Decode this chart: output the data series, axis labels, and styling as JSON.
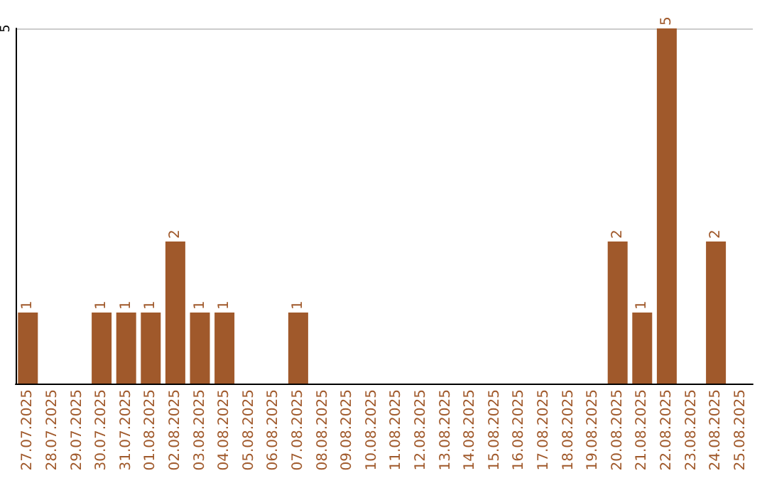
{
  "chart_data": {
    "type": "bar",
    "categories": [
      "27.07.2025",
      "28.07.2025",
      "29.07.2025",
      "30.07.2025",
      "31.07.2025",
      "01.08.2025",
      "02.08.2025",
      "03.08.2025",
      "04.08.2025",
      "05.08.2025",
      "06.08.2025",
      "07.08.2025",
      "08.08.2025",
      "09.08.2025",
      "10.08.2025",
      "11.08.2025",
      "12.08.2025",
      "13.08.2025",
      "14.08.2025",
      "15.08.2025",
      "16.08.2025",
      "17.08.2025",
      "18.08.2025",
      "19.08.2025",
      "20.08.2025",
      "21.08.2025",
      "22.08.2025",
      "23.08.2025",
      "24.08.2025",
      "25.08.2025"
    ],
    "values": [
      1,
      0,
      0,
      1,
      1,
      1,
      2,
      1,
      1,
      0,
      0,
      1,
      0,
      0,
      0,
      0,
      0,
      0,
      0,
      0,
      0,
      0,
      0,
      0,
      2,
      1,
      5,
      0,
      2,
      0
    ],
    "value_labels": [
      "1",
      null,
      null,
      "1",
      "1",
      "1",
      "2",
      "1",
      "1",
      null,
      null,
      "1",
      null,
      null,
      null,
      null,
      null,
      null,
      null,
      null,
      null,
      null,
      null,
      null,
      "2",
      "1",
      "5",
      null,
      "2",
      null
    ],
    "color": "#a0592b",
    "ylim": [
      0,
      5
    ],
    "yticks": [
      5
    ],
    "ref_lines": [
      {
        "axis": "y",
        "value": 5,
        "color": "#cccccc"
      }
    ]
  }
}
